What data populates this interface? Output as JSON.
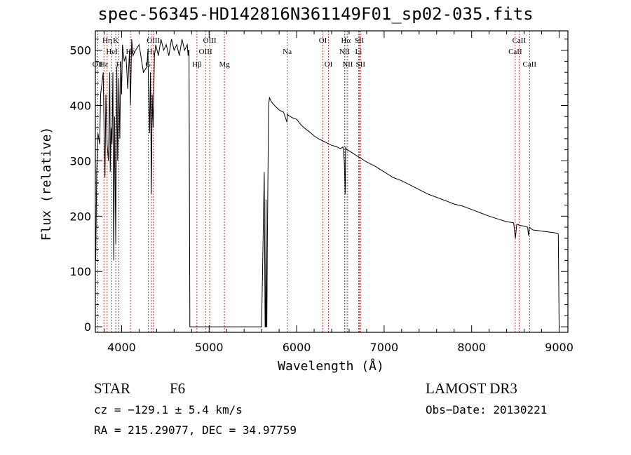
{
  "chart_data": {
    "type": "line",
    "title": "spec-56345-HD142816N361149F01_sp02-035.fits",
    "xlabel": "Wavelength (Å)",
    "ylabel": "Flux (relative)",
    "xlim": [
      3700,
      9100
    ],
    "ylim": [
      -10,
      535
    ],
    "xticks": [
      4000,
      5000,
      6000,
      7000,
      8000,
      9000
    ],
    "yticks": [
      0,
      100,
      200,
      300,
      400,
      500
    ],
    "line_color": "#000000",
    "marker_color": "#cc0000",
    "series": [
      {
        "name": "spectrum",
        "x": [
          3700,
          3705,
          3715,
          3730,
          3750,
          3760,
          3775,
          3790,
          3800,
          3810,
          3820,
          3835,
          3850,
          3865,
          3870,
          3880,
          3890,
          3900,
          3910,
          3920,
          3933,
          3945,
          3955,
          3968,
          3980,
          3990,
          4000,
          4010,
          4030,
          4050,
          4070,
          4090,
          4101,
          4115,
          4130,
          4160,
          4200,
          4250,
          4290,
          4300,
          4310,
          4320,
          4330,
          4340,
          4350,
          4360,
          4375,
          4390,
          4420,
          4450,
          4480,
          4510,
          4540,
          4570,
          4600,
          4630,
          4660,
          4690,
          4720,
          4750,
          4760,
          4765,
          4770,
          4780,
          4900,
          5200,
          5500,
          5600,
          5630,
          5640,
          5645,
          5650,
          5655,
          5660,
          5665,
          5680,
          5690,
          5700,
          5720,
          5760,
          5800,
          5850,
          5890,
          5895,
          5900,
          5950,
          6000,
          6050,
          6100,
          6150,
          6200,
          6250,
          6300,
          6350,
          6400,
          6450,
          6500,
          6530,
          6545,
          6555,
          6560,
          6565,
          6575,
          6600,
          6650,
          6700,
          6800,
          6900,
          7000,
          7100,
          7200,
          7300,
          7400,
          7500,
          7600,
          7700,
          7800,
          7900,
          8000,
          8100,
          8200,
          8300,
          8400,
          8480,
          8500,
          8515,
          8530,
          8545,
          8560,
          8600,
          8640,
          8650,
          8662,
          8675,
          8700,
          8750,
          8800,
          8850,
          8900,
          8950,
          8990,
          9000,
          9010
        ],
        "y": [
          150,
          120,
          280,
          350,
          330,
          420,
          440,
          460,
          350,
          270,
          420,
          330,
          300,
          460,
          280,
          360,
          330,
          460,
          120,
          380,
          150,
          470,
          300,
          450,
          340,
          480,
          420,
          510,
          480,
          490,
          430,
          500,
          400,
          520,
          490,
          500,
          510,
          460,
          470,
          500,
          420,
          350,
          460,
          240,
          420,
          360,
          490,
          510,
          490,
          520,
          500,
          510,
          490,
          520,
          500,
          510,
          490,
          520,
          500,
          510,
          490,
          500,
          500,
          0,
          0,
          0,
          0,
          0,
          280,
          0,
          0,
          230,
          0,
          0,
          150,
          400,
          415,
          410,
          405,
          398,
          392,
          388,
          370,
          385,
          383,
          378,
          375,
          365,
          358,
          352,
          345,
          340,
          336,
          332,
          328,
          326,
          322,
          325,
          300,
          240,
          325,
          322,
          320,
          318,
          313,
          308,
          298,
          290,
          280,
          270,
          264,
          256,
          248,
          240,
          234,
          228,
          222,
          218,
          212,
          206,
          200,
          195,
          190,
          188,
          160,
          185,
          185,
          183,
          183,
          182,
          180,
          165,
          180,
          178,
          175,
          174,
          173,
          172,
          171,
          170,
          168,
          0,
          0
        ]
      }
    ],
    "line_markers": [
      {
        "wavelength": 3727,
        "label": "OII",
        "row": 2
      },
      {
        "wavelength": 3798,
        "label": "Hε",
        "row": 2
      },
      {
        "wavelength": 3835,
        "label": "Hη",
        "row": 0
      },
      {
        "wavelength": 3889,
        "label": "HeI",
        "row": 1
      },
      {
        "wavelength": 3933,
        "label": "K",
        "row": 0
      },
      {
        "wavelength": 3968,
        "label": "H",
        "row": 2
      },
      {
        "wavelength": 4101,
        "label": "Hδ",
        "row": 1
      },
      {
        "wavelength": 4304,
        "label": "G",
        "row": 2
      },
      {
        "wavelength": 4340,
        "label": "Hγ",
        "row": 1
      },
      {
        "wavelength": 4363,
        "label": "OIII",
        "row": 0
      },
      {
        "wavelength": 4861,
        "label": "Hβ",
        "row": 2
      },
      {
        "wavelength": 4959,
        "label": "OIII",
        "row": 1
      },
      {
        "wavelength": 5007,
        "label": "OIII",
        "row": 0
      },
      {
        "wavelength": 5175,
        "label": "Mg",
        "row": 2
      },
      {
        "wavelength": 5893,
        "label": "Na",
        "row": 1
      },
      {
        "wavelength": 6300,
        "label": "OI",
        "row": 0
      },
      {
        "wavelength": 6364,
        "label": "OI",
        "row": 2
      },
      {
        "wavelength": 6548,
        "label": "NII",
        "row": 1
      },
      {
        "wavelength": 6563,
        "label": "Hα",
        "row": 0
      },
      {
        "wavelength": 6583,
        "label": "NII",
        "row": 2
      },
      {
        "wavelength": 6708,
        "label": "Li",
        "row": 1
      },
      {
        "wavelength": 6716,
        "label": "SII",
        "row": 0
      },
      {
        "wavelength": 6731,
        "label": "SII",
        "row": 2
      },
      {
        "wavelength": 8498,
        "label": "CaII",
        "row": 1
      },
      {
        "wavelength": 8542,
        "label": "CaII",
        "row": 0
      },
      {
        "wavelength": 8662,
        "label": "CaII",
        "row": 2
      }
    ]
  },
  "info": {
    "object_class": "STAR",
    "subclass": "F6",
    "survey": "LAMOST DR3",
    "velocity": "cz = −129.1 ± 5.4 km/s",
    "obs_date": "Obs−Date: 20130221",
    "coords": "RA = 215.29077, DEC =  34.97759"
  }
}
